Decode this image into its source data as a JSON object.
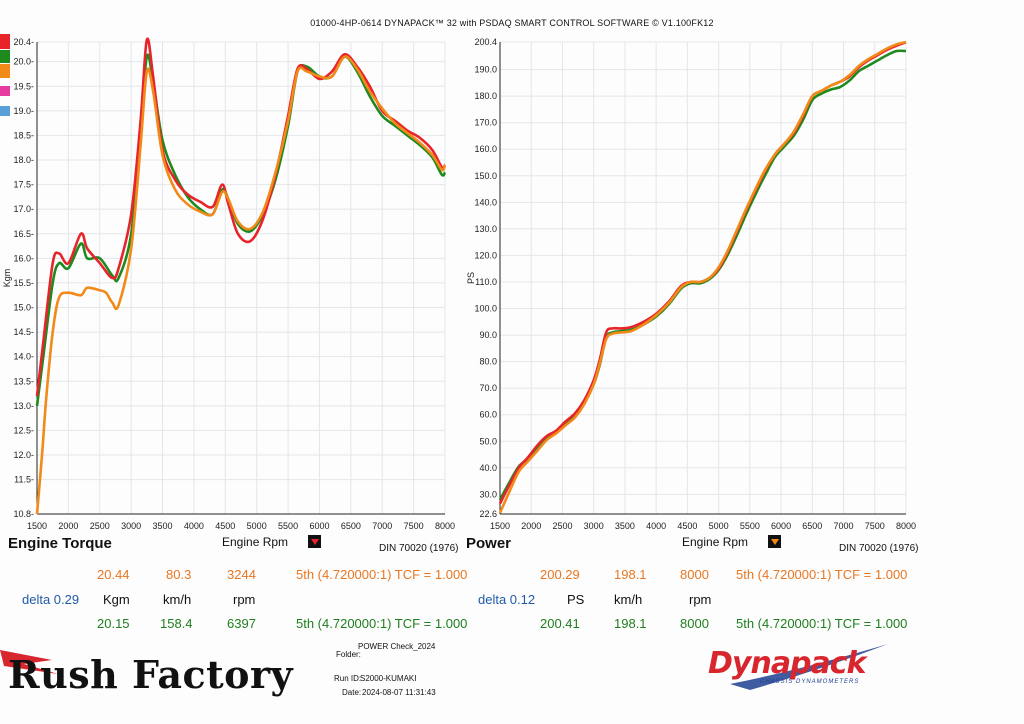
{
  "header": "01000-4HP-0614 DYNAPACK™ 32 with PSDAQ SMART CONTROL SOFTWARE © V1.100FK12",
  "colors": {
    "red": "#e8242b",
    "green": "#1e8a1e",
    "orange": "#f28a1a",
    "blue": "#1f5aa8",
    "dyna_red": "#d8262e",
    "dyna_blue": "#1f3f8f"
  },
  "legend_swatches": [
    "#e8242b",
    "#1e8a1e",
    "#f28a1a",
    "#e63ba0",
    "#5aa0d8"
  ],
  "torque": {
    "title": "Engine Torque",
    "xlabel": "Engine Rpm",
    "ylabel": "Kgm",
    "din": "DIN 70020 (1976)",
    "readout_top": {
      "v1": "20.44",
      "v2": "80.3",
      "v3": "3244",
      "gear": "5th (4.720000:1) TCF = 1.000"
    },
    "delta": "delta 0.29",
    "units": {
      "u1": "Kgm",
      "u2": "km/h",
      "u3": "rpm"
    },
    "readout_bottom": {
      "v1": "20.15",
      "v2": "158.4",
      "v3": "6397",
      "gear": "5th (4.720000:1) TCF = 1.000"
    }
  },
  "power": {
    "title": "Power",
    "xlabel": "Engine Rpm",
    "ylabel": "PS",
    "din": "DIN 70020 (1976)",
    "readout_top": {
      "v1": "200.29",
      "v2": "198.1",
      "v3": "8000",
      "gear": "5th (4.720000:1) TCF = 1.000"
    },
    "delta": "delta 0.12",
    "units": {
      "u1": "PS",
      "u2": "km/h",
      "u3": "rpm"
    },
    "readout_bottom": {
      "v1": "200.41",
      "v2": "198.1",
      "v3": "8000",
      "gear": "5th (4.720000:1) TCF = 1.000"
    }
  },
  "footer": {
    "brand": "Rush Factory",
    "folder_label": "Folder:",
    "folder": "POWER Check_2024",
    "run_label": "Run ID:",
    "run": "S2000-KUMAKI",
    "date_label": "Date:",
    "date": "2024-08-07 11:31:43",
    "dynapack": "Dynapack",
    "dynapack_sub": "CHASSIS DYNAMOMETERS"
  },
  "chart_data": [
    {
      "type": "line",
      "title": "Engine Torque",
      "xlabel": "Engine Rpm",
      "ylabel": "Kgm",
      "xlim": [
        1500,
        8000
      ],
      "ylim": [
        10.8,
        20.4
      ],
      "xticks": [
        "1500",
        "2000",
        "2500",
        "3000",
        "3500",
        "4000",
        "4500",
        "5000",
        "5500",
        "6000",
        "6500",
        "7000",
        "7500",
        "8000"
      ],
      "yticks": [
        "10.8",
        "11.5",
        "12.0",
        "12.5",
        "13.0",
        "13.5",
        "14.0",
        "14.5",
        "15.0",
        "15.5",
        "16.0",
        "16.5",
        "17.0",
        "17.5",
        "18.0",
        "18.5",
        "19.0",
        "19.5",
        "20.0",
        "20.4"
      ],
      "grid": true,
      "series": [
        {
          "color": "#1e8a1e",
          "x": [
            1500,
            1600,
            1750,
            1850,
            2000,
            2200,
            2300,
            2500,
            2700,
            2800,
            3000,
            3150,
            3250,
            3350,
            3500,
            3700,
            3900,
            4100,
            4300,
            4450,
            4550,
            4700,
            4900,
            5100,
            5300,
            5500,
            5650,
            5800,
            6000,
            6200,
            6400,
            6600,
            6800,
            7000,
            7200,
            7400,
            7600,
            7800,
            7950,
            8000
          ],
          "y": [
            13.0,
            14.0,
            15.5,
            15.9,
            15.8,
            16.3,
            16.0,
            16.0,
            15.65,
            15.6,
            16.5,
            18.6,
            20.1,
            19.6,
            18.4,
            17.7,
            17.25,
            17.0,
            16.9,
            17.4,
            17.2,
            16.7,
            16.55,
            16.9,
            17.6,
            18.7,
            19.8,
            19.9,
            19.7,
            19.7,
            20.1,
            19.8,
            19.3,
            18.9,
            18.7,
            18.5,
            18.3,
            18.05,
            17.7,
            17.75
          ]
        },
        {
          "color": "#e8242b",
          "x": [
            1500,
            1600,
            1750,
            1850,
            2000,
            2200,
            2300,
            2500,
            2700,
            2800,
            3000,
            3150,
            3250,
            3350,
            3500,
            3700,
            3900,
            4100,
            4300,
            4450,
            4550,
            4700,
            4900,
            5100,
            5300,
            5500,
            5650,
            5800,
            6000,
            6200,
            6400,
            6600,
            6800,
            7000,
            7200,
            7400,
            7600,
            7800,
            7950,
            8000
          ],
          "y": [
            13.2,
            14.3,
            15.9,
            16.1,
            15.9,
            16.5,
            16.2,
            15.9,
            15.6,
            15.8,
            16.9,
            18.8,
            20.44,
            19.7,
            18.2,
            17.6,
            17.3,
            17.15,
            17.05,
            17.5,
            17.1,
            16.5,
            16.35,
            16.8,
            17.7,
            18.9,
            19.85,
            19.85,
            19.65,
            19.8,
            20.15,
            19.9,
            19.5,
            19.0,
            18.8,
            18.6,
            18.45,
            18.2,
            17.85,
            17.9
          ]
        },
        {
          "color": "#f28a1a",
          "x": [
            1500,
            1580,
            1650,
            1750,
            1850,
            2000,
            2200,
            2300,
            2500,
            2600,
            2700,
            2800,
            3000,
            3150,
            3250,
            3350,
            3500,
            3700,
            3900,
            4100,
            4300,
            4450,
            4550,
            4700,
            4900,
            5100,
            5300,
            5500,
            5650,
            5800,
            6000,
            6200,
            6400,
            6600,
            6800,
            7000,
            7200,
            7400,
            7600,
            7800,
            7950,
            8000
          ],
          "y": [
            10.8,
            12.0,
            13.2,
            14.5,
            15.2,
            15.3,
            15.25,
            15.4,
            15.35,
            15.3,
            15.1,
            15.05,
            16.2,
            18.3,
            19.8,
            19.4,
            18.1,
            17.4,
            17.1,
            16.95,
            16.9,
            17.35,
            17.2,
            16.75,
            16.6,
            16.95,
            17.75,
            18.8,
            19.8,
            19.8,
            19.7,
            19.7,
            20.1,
            19.85,
            19.4,
            19.05,
            18.75,
            18.55,
            18.35,
            18.1,
            17.8,
            17.9
          ]
        }
      ]
    },
    {
      "type": "line",
      "title": "Power",
      "xlabel": "Engine Rpm",
      "ylabel": "PS",
      "xlim": [
        1500,
        8000
      ],
      "ylim": [
        22.6,
        200.4
      ],
      "xticks": [
        "1500",
        "2000",
        "2500",
        "3000",
        "3500",
        "4000",
        "4500",
        "5000",
        "5500",
        "6000",
        "6500",
        "7000",
        "7500",
        "8000"
      ],
      "yticks": [
        "22.6",
        "30.0",
        "40.0",
        "50.0",
        "60.0",
        "70.0",
        "80.0",
        "90.0",
        "100.0",
        "110.0",
        "120.0",
        "130.0",
        "140.0",
        "150.0",
        "160.0",
        "170.0",
        "180.0",
        "190.0",
        "200.4"
      ],
      "grid": true,
      "series": [
        {
          "color": "#1e8a1e",
          "x": [
            1500,
            1650,
            1800,
            1950,
            2100,
            2250,
            2400,
            2550,
            2700,
            2850,
            3000,
            3100,
            3200,
            3300,
            3450,
            3600,
            3800,
            4000,
            4200,
            4400,
            4550,
            4700,
            4850,
            5000,
            5150,
            5300,
            5450,
            5600,
            5750,
            5900,
            6050,
            6200,
            6350,
            6500,
            6650,
            6800,
            6950,
            7100,
            7250,
            7400,
            7550,
            7700,
            7850,
            8000
          ],
          "y": [
            28.0,
            34.5,
            40.5,
            43.5,
            47.5,
            51.5,
            53.5,
            56.5,
            59.5,
            64.5,
            71.5,
            79.0,
            89.0,
            91.0,
            91.5,
            92.0,
            94.0,
            97.0,
            101.5,
            107.5,
            109.5,
            109.5,
            111.0,
            114.5,
            120.5,
            128.0,
            136.0,
            143.5,
            150.5,
            157.0,
            161.0,
            165.0,
            171.0,
            178.5,
            181.0,
            182.5,
            183.5,
            186.0,
            189.5,
            191.5,
            193.5,
            195.5,
            197.0,
            197.0
          ]
        },
        {
          "color": "#e8242b",
          "x": [
            1500,
            1650,
            1800,
            1950,
            2100,
            2250,
            2400,
            2550,
            2700,
            2850,
            3000,
            3100,
            3200,
            3300,
            3450,
            3600,
            3800,
            4000,
            4200,
            4400,
            4550,
            4700,
            4850,
            5000,
            5150,
            5300,
            5450,
            5600,
            5750,
            5900,
            6050,
            6200,
            6350,
            6500,
            6650,
            6800,
            6950,
            7100,
            7250,
            7400,
            7550,
            7700,
            7850,
            8000
          ],
          "y": [
            26.5,
            33.5,
            40.0,
            44.0,
            48.5,
            52.0,
            54.0,
            57.5,
            60.5,
            65.5,
            73.0,
            81.0,
            91.0,
            92.5,
            92.5,
            93.0,
            95.0,
            98.0,
            102.5,
            108.5,
            110.0,
            110.0,
            111.5,
            115.0,
            121.5,
            129.5,
            137.5,
            145.0,
            152.0,
            158.0,
            162.0,
            166.0,
            172.5,
            180.0,
            182.0,
            184.0,
            185.5,
            187.5,
            191.0,
            193.5,
            195.5,
            197.5,
            199.0,
            200.3
          ]
        },
        {
          "color": "#f28a1a",
          "x": [
            1500,
            1650,
            1800,
            1950,
            2100,
            2250,
            2400,
            2550,
            2700,
            2850,
            3000,
            3100,
            3200,
            3300,
            3450,
            3600,
            3800,
            4000,
            4200,
            4400,
            4550,
            4700,
            4850,
            5000,
            5150,
            5300,
            5450,
            5600,
            5750,
            5900,
            6050,
            6200,
            6350,
            6500,
            6650,
            6800,
            6950,
            7100,
            7250,
            7400,
            7550,
            7700,
            7850,
            8000
          ],
          "y": [
            23.0,
            31.0,
            38.5,
            42.5,
            46.5,
            50.5,
            53.0,
            56.0,
            59.0,
            64.0,
            71.5,
            79.5,
            88.5,
            90.5,
            91.0,
            91.5,
            94.0,
            97.5,
            102.0,
            108.0,
            110.0,
            110.0,
            111.5,
            115.5,
            122.0,
            130.0,
            138.0,
            145.5,
            152.5,
            158.0,
            162.0,
            166.5,
            173.0,
            180.0,
            182.0,
            184.0,
            185.5,
            188.0,
            191.5,
            194.0,
            196.0,
            198.0,
            199.5,
            200.4
          ]
        }
      ]
    }
  ]
}
